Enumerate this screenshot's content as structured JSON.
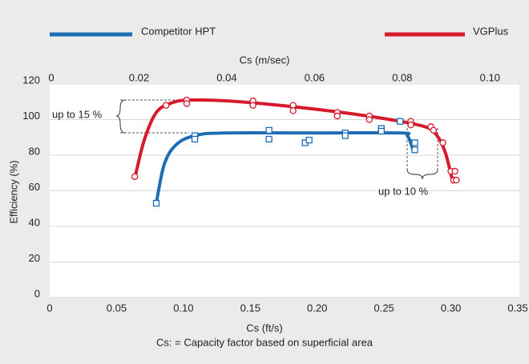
{
  "chart_data": {
    "type": "scatter",
    "x_label": "Cs (ft/s)",
    "x2_label": "Cs (m/sec)",
    "y_label": "Efficiency (%)",
    "caption": "Cs: = Capacity factor based on superficial area",
    "xlim": [
      0,
      0.35
    ],
    "xticks": [
      0,
      0.05,
      {
        "value": 0.1,
        "label": "0.10"
      },
      0.15,
      {
        "value": 0.2,
        "label": "0.20"
      },
      0.25,
      {
        "value": 0.3,
        "label": "0.30"
      },
      0.35
    ],
    "x2lim": [
      0,
      0.1067
    ],
    "x2ticks": [
      0,
      0.02,
      0.04,
      0.06,
      0.08,
      {
        "value": 0.1,
        "label": "0.10"
      }
    ],
    "ylim": [
      0,
      120
    ],
    "yticks": [
      0,
      20,
      40,
      60,
      80,
      100,
      120
    ],
    "grid": true,
    "annotations": [
      "up to 15 %",
      "up to 10 %"
    ],
    "series": [
      {
        "name": "Competitor HPT",
        "color": "#1f6db5",
        "marker": "square",
        "x": [
          0.0797,
          0.1085,
          0.1085,
          0.164,
          0.164,
          0.191,
          0.194,
          0.221,
          0.221,
          0.248,
          0.248,
          0.262,
          0.273,
          0.273
        ],
        "values": [
          53,
          91,
          89,
          94,
          89,
          87,
          88.5,
          92.5,
          91,
          95,
          93.5,
          99,
          87,
          83
        ],
        "fit": {
          "x": [
            0.0797,
            0.0857,
            0.0947,
            0.1085,
            0.1307,
            0.2026,
            0.2626,
            0.2674,
            0.2704,
            0.2716
          ],
          "values": [
            53,
            75,
            86,
            91,
            92.5,
            92.5,
            92.5,
            91,
            86,
            82.5
          ]
        }
      },
      {
        "name": "VGPlus",
        "color": "#d7192d",
        "marker": "circle",
        "x": [
          0.0636,
          0.087,
          0.1025,
          0.1025,
          0.152,
          0.152,
          0.182,
          0.182,
          0.215,
          0.215,
          0.239,
          0.239,
          0.27,
          0.27,
          0.285,
          0.287,
          0.294,
          0.3,
          0.303,
          0.302,
          0.304
        ],
        "values": [
          68,
          108,
          111,
          109,
          110.5,
          108,
          108,
          105,
          104,
          102,
          102,
          100,
          99,
          97,
          96,
          94,
          87,
          71,
          71,
          66,
          66
        ],
        "fit": {
          "x": [
            0.0636,
            0.0707,
            0.0797,
            0.0917,
            0.1067,
            0.1427,
            0.2026,
            0.2506,
            0.2806,
            0.2896,
            0.2956,
            0.3003,
            0.3016
          ],
          "values": [
            67,
            88.5,
            104,
            109.5,
            111,
            110,
            105.5,
            100.5,
            96,
            91,
            82,
            68.5,
            65
          ]
        }
      }
    ]
  }
}
